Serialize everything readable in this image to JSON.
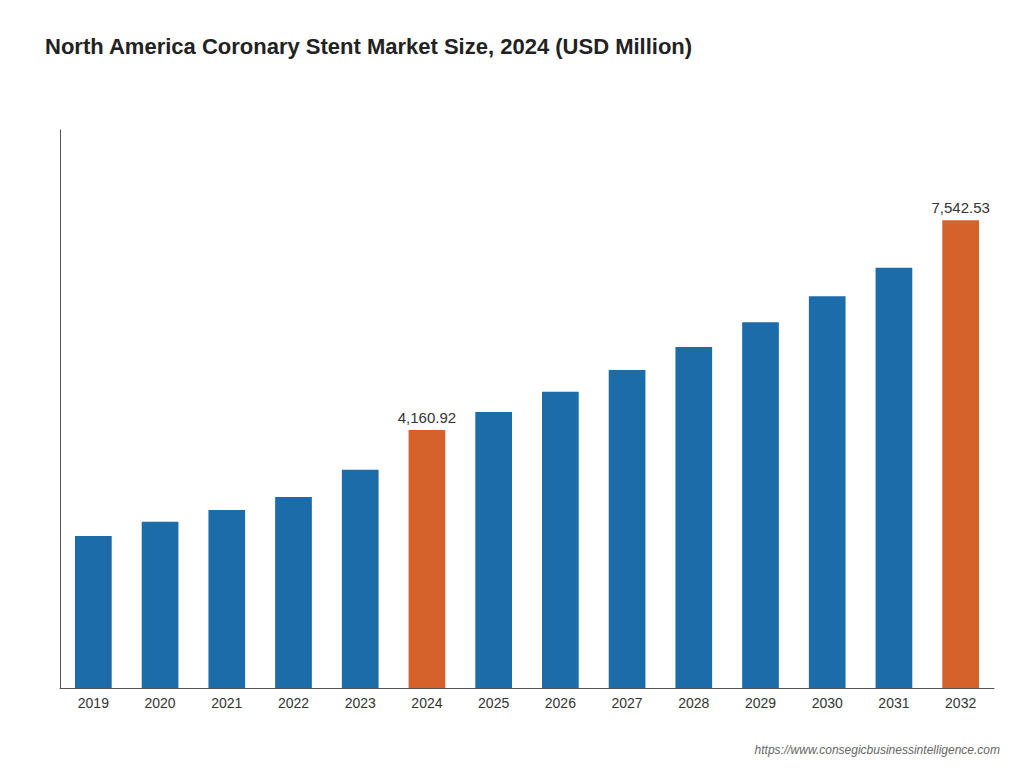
{
  "chart_data": {
    "type": "bar",
    "title": "North America Coronary Stent Market Size, 2024 (USD Million)",
    "categories": [
      "2019",
      "2020",
      "2021",
      "2022",
      "2023",
      "2024",
      "2025",
      "2026",
      "2027",
      "2028",
      "2029",
      "2030",
      "2031",
      "2032"
    ],
    "values": [
      2450,
      2680,
      2870,
      3080,
      3520,
      4160.92,
      4450,
      4780,
      5130,
      5500,
      5900,
      6320,
      6780,
      7542.53
    ],
    "colors": [
      "#1b6ca8",
      "#1b6ca8",
      "#1b6ca8",
      "#1b6ca8",
      "#1b6ca8",
      "#d4622a",
      "#1b6ca8",
      "#1b6ca8",
      "#1b6ca8",
      "#1b6ca8",
      "#1b6ca8",
      "#1b6ca8",
      "#1b6ca8",
      "#d4622a"
    ],
    "annotations": [
      {
        "category": "2024",
        "value": 4160.92,
        "text": "4,160.92"
      },
      {
        "category": "2032",
        "value": 7542.53,
        "text": "7,542.53"
      },
      {
        "text": "https://www.consegicbusinessintelligence.com"
      }
    ],
    "ylim": [
      0,
      9000
    ],
    "grid": false,
    "tick_labels": "x"
  }
}
